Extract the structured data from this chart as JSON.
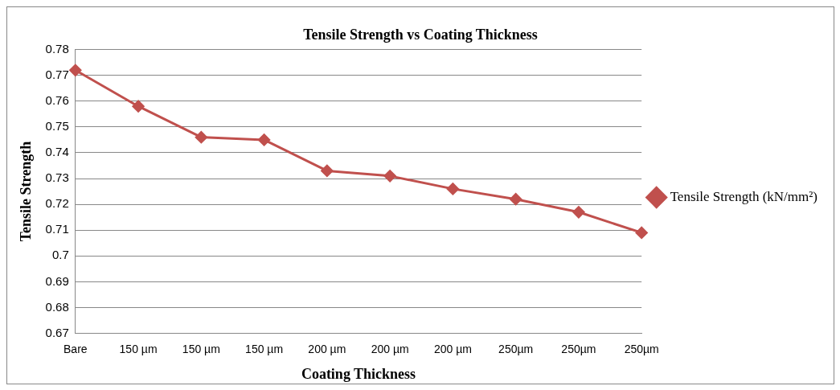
{
  "chart_data": {
    "type": "line",
    "title": "Tensile Strength vs Coating Thickness",
    "xlabel": "Coating Thickness",
    "ylabel": "Tensile Strength",
    "categories": [
      "Bare",
      "150 µm",
      "150 µm",
      "150 µm",
      "200 µm",
      "200 µm",
      "200 µm",
      "250µm",
      "250µm",
      "250µm"
    ],
    "series": [
      {
        "name": "Tensile Strength (kN/mm²)",
        "color": "#c0504d",
        "values": [
          0.772,
          0.758,
          0.746,
          0.745,
          0.733,
          0.731,
          0.726,
          0.722,
          0.717,
          0.709
        ]
      }
    ],
    "ylim": [
      0.67,
      0.78
    ],
    "yticks": [
      {
        "value": 0.67,
        "label": "0.67"
      },
      {
        "value": 0.68,
        "label": "0.68"
      },
      {
        "value": 0.69,
        "label": "0.69"
      },
      {
        "value": 0.7,
        "label": "0.7"
      },
      {
        "value": 0.71,
        "label": "0.71"
      },
      {
        "value": 0.72,
        "label": "0.72"
      },
      {
        "value": 0.73,
        "label": "0.73"
      },
      {
        "value": 0.74,
        "label": "0.74"
      },
      {
        "value": 0.75,
        "label": "0.75"
      },
      {
        "value": 0.76,
        "label": "0.76"
      },
      {
        "value": 0.77,
        "label": "0.77"
      },
      {
        "value": 0.78,
        "label": "0.78"
      }
    ],
    "grid": "y",
    "legend": "right",
    "marker": "diamond",
    "line_style": "solid"
  }
}
